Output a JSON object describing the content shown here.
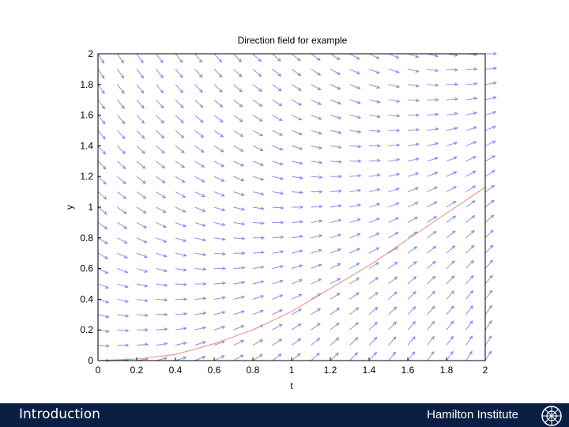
{
  "chart_data": {
    "type": "direction-field",
    "title": "Direction field for example",
    "xlabel": "t",
    "ylabel": "y",
    "xlim": [
      0,
      2
    ],
    "ylim": [
      0,
      2
    ],
    "xticks": [
      "0",
      "0.2",
      "0.4",
      "0.6",
      "0.8",
      "1",
      "1.2",
      "1.4",
      "1.6",
      "1.8",
      "2"
    ],
    "yticks": [
      "0",
      "0.2",
      "0.4",
      "0.6",
      "0.8",
      "1",
      "1.2",
      "1.4",
      "1.6",
      "1.8",
      "2"
    ],
    "field_grid": {
      "t_step": 0.1,
      "y_step": 0.1
    },
    "field_color": "#7f86e8",
    "solution_curve": {
      "color": "#e8888a",
      "points": [
        [
          0,
          0
        ],
        [
          0.2,
          0.01
        ],
        [
          0.4,
          0.04
        ],
        [
          0.6,
          0.11
        ],
        [
          0.8,
          0.2
        ],
        [
          1,
          0.32
        ],
        [
          1.2,
          0.47
        ],
        [
          1.4,
          0.62
        ],
        [
          1.6,
          0.79
        ],
        [
          1.8,
          0.96
        ],
        [
          2,
          1.13
        ]
      ]
    }
  },
  "footer": {
    "left_text": "Introduction",
    "right_text": "Hamilton Institute",
    "background": "#0b1f44"
  }
}
